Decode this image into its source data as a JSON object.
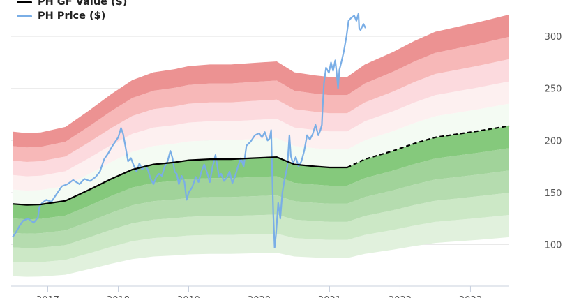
{
  "chart_data": {
    "type": "line",
    "title": "",
    "xlabel": "",
    "ylabel": "",
    "legend": {
      "position": "top-left",
      "entries": [
        {
          "label": "PH GF Value ($)",
          "color": "#000000"
        },
        {
          "label": "PH Price ($)",
          "color": "#7aaee6"
        }
      ]
    },
    "x_ticks": [
      "2017",
      "2018",
      "2019",
      "2020",
      "2021",
      "2022",
      "2023"
    ],
    "x_range": [
      2016.48,
      2023.55
    ],
    "y_ticks": [
      100,
      150,
      200,
      250,
      300
    ],
    "y_range": [
      60,
      335
    ],
    "grid": {
      "horizontal": true,
      "vertical": false
    },
    "gf_value": {
      "name": "PH GF Value ($)",
      "historical": [
        [
          2016.5,
          139
        ],
        [
          2016.7,
          138
        ],
        [
          2016.9,
          138.5
        ],
        [
          2017.25,
          142
        ],
        [
          2017.6,
          153
        ],
        [
          2017.9,
          163
        ],
        [
          2018.2,
          172
        ],
        [
          2018.5,
          177
        ],
        [
          2018.8,
          179
        ],
        [
          2019.0,
          181
        ],
        [
          2019.3,
          182
        ],
        [
          2019.6,
          182
        ],
        [
          2019.9,
          183
        ],
        [
          2020.25,
          184
        ],
        [
          2020.5,
          177
        ],
        [
          2020.8,
          175
        ],
        [
          2021.0,
          174
        ],
        [
          2021.25,
          174
        ]
      ],
      "estimate": [
        [
          2021.25,
          174
        ],
        [
          2021.5,
          182
        ],
        [
          2021.9,
          190
        ],
        [
          2022.2,
          197
        ],
        [
          2022.5,
          203
        ],
        [
          2022.8,
          206
        ],
        [
          2023.1,
          209
        ],
        [
          2023.55,
          214
        ]
      ]
    },
    "bands": {
      "colors_above": [
        "#f4fbf3",
        "#fdf0f0",
        "#fcdade",
        "#f7b8b8",
        "#ec9292",
        "#f07272"
      ],
      "colors_below": [
        "#e1f1dd",
        "#cce8c6",
        "#b5dcaf",
        "#a1d39a",
        "#85c97c"
      ],
      "factors": [
        0.5,
        0.6,
        0.7,
        0.8,
        0.9,
        1.0,
        1.1,
        1.2,
        1.3,
        1.4,
        1.5
      ]
    },
    "price": {
      "name": "PH Price ($)",
      "points": [
        [
          2016.5,
          107
        ],
        [
          2016.55,
          112
        ],
        [
          2016.6,
          118
        ],
        [
          2016.65,
          123
        ],
        [
          2016.72,
          125
        ],
        [
          2016.8,
          121
        ],
        [
          2016.86,
          126
        ],
        [
          2016.88,
          136
        ],
        [
          2016.92,
          140
        ],
        [
          2016.98,
          143
        ],
        [
          2017.05,
          141
        ],
        [
          2017.12,
          148
        ],
        [
          2017.2,
          156
        ],
        [
          2017.28,
          158
        ],
        [
          2017.36,
          162
        ],
        [
          2017.45,
          158
        ],
        [
          2017.52,
          163
        ],
        [
          2017.6,
          161
        ],
        [
          2017.68,
          165
        ],
        [
          2017.74,
          170
        ],
        [
          2017.8,
          182
        ],
        [
          2017.86,
          188
        ],
        [
          2017.92,
          195
        ],
        [
          2018.0,
          203
        ],
        [
          2018.04,
          212
        ],
        [
          2018.07,
          206
        ],
        [
          2018.1,
          195
        ],
        [
          2018.14,
          180
        ],
        [
          2018.18,
          183
        ],
        [
          2018.22,
          176
        ],
        [
          2018.26,
          170
        ],
        [
          2018.3,
          178
        ],
        [
          2018.34,
          172
        ],
        [
          2018.38,
          176
        ],
        [
          2018.42,
          172
        ],
        [
          2018.46,
          163
        ],
        [
          2018.5,
          158
        ],
        [
          2018.54,
          165
        ],
        [
          2018.58,
          168
        ],
        [
          2018.62,
          166
        ],
        [
          2018.66,
          175
        ],
        [
          2018.7,
          180
        ],
        [
          2018.74,
          190
        ],
        [
          2018.77,
          183
        ],
        [
          2018.8,
          170
        ],
        [
          2018.83,
          168
        ],
        [
          2018.86,
          158
        ],
        [
          2018.9,
          166
        ],
        [
          2018.94,
          160
        ],
        [
          2018.97,
          143
        ],
        [
          2019.0,
          150
        ],
        [
          2019.05,
          155
        ],
        [
          2019.1,
          165
        ],
        [
          2019.14,
          160
        ],
        [
          2019.18,
          170
        ],
        [
          2019.22,
          177
        ],
        [
          2019.26,
          169
        ],
        [
          2019.3,
          160
        ],
        [
          2019.34,
          175
        ],
        [
          2019.38,
          186
        ],
        [
          2019.4,
          178
        ],
        [
          2019.43,
          165
        ],
        [
          2019.46,
          168
        ],
        [
          2019.5,
          161
        ],
        [
          2019.54,
          164
        ],
        [
          2019.58,
          170
        ],
        [
          2019.62,
          159
        ],
        [
          2019.66,
          166
        ],
        [
          2019.7,
          175
        ],
        [
          2019.74,
          183
        ],
        [
          2019.78,
          175
        ],
        [
          2019.82,
          195
        ],
        [
          2019.88,
          199
        ],
        [
          2019.94,
          205
        ],
        [
          2020.0,
          207
        ],
        [
          2020.04,
          203
        ],
        [
          2020.08,
          208
        ],
        [
          2020.12,
          200
        ],
        [
          2020.15,
          202
        ],
        [
          2020.17,
          210
        ],
        [
          2020.18,
          182
        ],
        [
          2020.2,
          130
        ],
        [
          2020.22,
          97
        ],
        [
          2020.24,
          110
        ],
        [
          2020.27,
          140
        ],
        [
          2020.3,
          125
        ],
        [
          2020.33,
          150
        ],
        [
          2020.36,
          162
        ],
        [
          2020.4,
          175
        ],
        [
          2020.43,
          205
        ],
        [
          2020.45,
          185
        ],
        [
          2020.48,
          178
        ],
        [
          2020.52,
          184
        ],
        [
          2020.56,
          175
        ],
        [
          2020.6,
          180
        ],
        [
          2020.64,
          190
        ],
        [
          2020.68,
          205
        ],
        [
          2020.72,
          201
        ],
        [
          2020.76,
          206
        ],
        [
          2020.8,
          215
        ],
        [
          2020.84,
          205
        ],
        [
          2020.87,
          210
        ],
        [
          2020.89,
          215
        ],
        [
          2020.9,
          230
        ],
        [
          2020.92,
          255
        ],
        [
          2020.95,
          270
        ],
        [
          2020.99,
          265
        ],
        [
          2021.02,
          275
        ],
        [
          2021.05,
          267
        ],
        [
          2021.08,
          277
        ],
        [
          2021.1,
          265
        ],
        [
          2021.12,
          250
        ],
        [
          2021.14,
          268
        ],
        [
          2021.17,
          276
        ],
        [
          2021.2,
          285
        ],
        [
          2021.24,
          300
        ],
        [
          2021.27,
          315
        ],
        [
          2021.31,
          318
        ],
        [
          2021.35,
          320
        ],
        [
          2021.38,
          315
        ],
        [
          2021.41,
          322
        ],
        [
          2021.42,
          308
        ],
        [
          2021.44,
          306
        ],
        [
          2021.48,
          312
        ],
        [
          2021.51,
          308
        ]
      ]
    }
  }
}
